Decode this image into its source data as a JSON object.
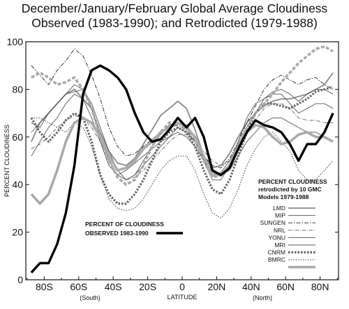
{
  "title": {
    "line1": "December/January/February Global Average Cloudiness",
    "line2": "Observed (1983-1990); and Retrodicted (1979-1988)"
  },
  "chart_data": {
    "type": "line",
    "ylabel": "PERCENT CLOUDINESS",
    "xlabel": "LATITUDE",
    "ylim": [
      0,
      100
    ],
    "xlim": [
      -90,
      90
    ],
    "y_ticks": [
      "0",
      "20",
      "40",
      "60",
      "80",
      "100"
    ],
    "x_ticks": [
      "80S",
      "60S",
      "40S",
      "20S",
      "0",
      "20N",
      "40N",
      "60N",
      "80N"
    ],
    "x_sub_labels": {
      "south": "(South)",
      "north": "(North)"
    },
    "grid": false,
    "observed_label": [
      "PERCENT OF CLOUDINESS",
      "OBSERVED 1983-1990"
    ],
    "legend_title": [
      "PERCENT CLOUDINESS",
      "retrodicted by 10 GMC",
      "Models 1979-1988"
    ],
    "x": [
      -87.5,
      -82.5,
      -77.5,
      -72.5,
      -67.5,
      -62.5,
      -57.5,
      -52.5,
      -47.5,
      -42.5,
      -37.5,
      -32.5,
      -27.5,
      -22.5,
      -17.5,
      -12.5,
      -7.5,
      -2.5,
      2.5,
      7.5,
      12.5,
      17.5,
      22.5,
      27.5,
      32.5,
      37.5,
      42.5,
      47.5,
      52.5,
      57.5,
      62.5,
      67.5,
      72.5,
      77.5,
      82.5,
      87.5
    ],
    "observed": {
      "name": "PERCENT OF CLOUDINESS OBSERVED 1983-1990",
      "values": [
        3,
        7,
        7,
        15,
        28,
        48,
        78,
        88,
        90,
        88,
        85,
        80,
        70,
        62,
        58,
        59,
        63,
        68,
        64,
        68,
        60,
        46,
        44,
        47,
        55,
        62,
        67,
        65,
        64,
        62,
        57,
        50,
        57,
        57,
        62,
        70
      ]
    },
    "series": [
      {
        "name": "LMD",
        "style": "solid-gray",
        "values": [
          58,
          66,
          70,
          74,
          78,
          80,
          76,
          72,
          62,
          54,
          49,
          48,
          51,
          57,
          63,
          69,
          72,
          75,
          72,
          63,
          52,
          47,
          48,
          53,
          60,
          66,
          70,
          73,
          75,
          76,
          76,
          77,
          78,
          80,
          82,
          87
        ]
      },
      {
        "name": "MIP",
        "style": "thin-solid",
        "values": [
          66,
          64,
          70,
          74,
          78,
          79,
          80,
          74,
          64,
          54,
          46,
          42,
          44,
          50,
          56,
          61,
          65,
          66,
          65,
          60,
          50,
          44,
          45,
          50,
          57,
          64,
          70,
          76,
          79,
          80,
          78,
          75,
          78,
          80,
          80,
          78
        ]
      },
      {
        "name": "SUNGEN",
        "style": "dash-dot",
        "values": [
          90,
          86,
          82,
          88,
          92,
          97,
          94,
          86,
          76,
          64,
          56,
          52,
          53,
          56,
          59,
          62,
          64,
          65,
          63,
          58,
          52,
          48,
          47,
          51,
          58,
          66,
          73,
          80,
          84,
          86,
          84,
          82,
          84,
          85,
          82,
          80
        ]
      },
      {
        "name": "NRL",
        "style": "gray-dashdot",
        "values": [
          55,
          57,
          60,
          64,
          67,
          69,
          68,
          64,
          58,
          51,
          46,
          42,
          43,
          46,
          50,
          54,
          58,
          61,
          61,
          58,
          54,
          50,
          48,
          50,
          55,
          61,
          67,
          72,
          74,
          74,
          72,
          68,
          67,
          67,
          66,
          66
        ]
      },
      {
        "name": "YONU",
        "style": "thin-solid",
        "values": [
          62,
          66,
          70,
          74,
          78,
          82,
          80,
          72,
          60,
          50,
          44,
          42,
          44,
          48,
          52,
          56,
          60,
          64,
          62,
          58,
          50,
          42,
          42,
          48,
          58,
          68,
          74,
          76,
          78,
          78,
          74,
          70,
          72,
          74,
          74,
          72
        ]
      },
      {
        "name": "MRI",
        "style": "thin-solid",
        "values": [
          52,
          58,
          64,
          68,
          74,
          78,
          76,
          68,
          58,
          48,
          44,
          46,
          49,
          52,
          55,
          58,
          60,
          62,
          60,
          56,
          50,
          45,
          44,
          46,
          52,
          58,
          62,
          66,
          68,
          68,
          66,
          64,
          62,
          62,
          60,
          58
        ]
      },
      {
        "name": "CNRM",
        "style": "heavy-dotted",
        "values": [
          68,
          62,
          58,
          62,
          67,
          70,
          68,
          58,
          44,
          36,
          32,
          32,
          36,
          42,
          50,
          58,
          62,
          64,
          62,
          56,
          46,
          38,
          36,
          42,
          52,
          62,
          70,
          74,
          74,
          73,
          72,
          74,
          76,
          79,
          80,
          81
        ]
      },
      {
        "name": "BMRC",
        "style": "light-dotted",
        "values": [
          68,
          68,
          66,
          64,
          62,
          66,
          64,
          56,
          44,
          34,
          30,
          29,
          30,
          34,
          40,
          46,
          50,
          52,
          52,
          46,
          36,
          28,
          26,
          30,
          38,
          48,
          55,
          60,
          62,
          58,
          54,
          46,
          42,
          42,
          46,
          50
        ]
      },
      {
        "name": "",
        "style": "thick-gray",
        "values": [
          36,
          32,
          36,
          46,
          58,
          66,
          68,
          66,
          60,
          52,
          46,
          47,
          50,
          55,
          58,
          62,
          64,
          66,
          64,
          60,
          52,
          44,
          44,
          48,
          56,
          62,
          65,
          64,
          60,
          57,
          58,
          61,
          62,
          60,
          60,
          58
        ]
      },
      {
        "name": "",
        "style": "thick-gray-dashed",
        "values": [
          85,
          87,
          85,
          82,
          83,
          85,
          80,
          72,
          60,
          50,
          43,
          40,
          42,
          48,
          56,
          62,
          66,
          66,
          64,
          59,
          50,
          43,
          44,
          48,
          56,
          64,
          70,
          74,
          78,
          83,
          87,
          91,
          94,
          97,
          98,
          96
        ]
      }
    ]
  },
  "legend": [
    {
      "label": "LMD",
      "style": "solid-gray"
    },
    {
      "label": "MIP",
      "style": "thin-solid"
    },
    {
      "label": "SUNGEN",
      "style": "dash-dot"
    },
    {
      "label": "NRL",
      "style": "gray-dashdot"
    },
    {
      "label": "YONU",
      "style": "thin-solid"
    },
    {
      "label": "MRI",
      "style": "thin-solid"
    },
    {
      "label": "CNRM",
      "style": "heavy-dotted"
    },
    {
      "label": "BMRC",
      "style": "light-dotted"
    },
    {
      "label": "",
      "style": "thick-gray"
    }
  ]
}
